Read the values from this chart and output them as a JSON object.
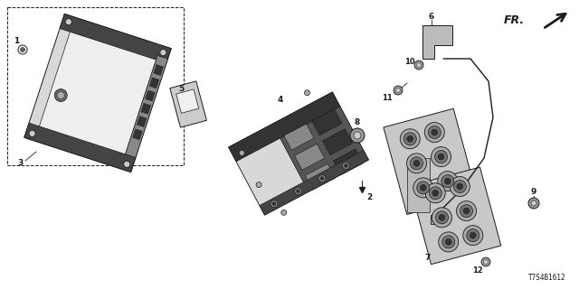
{
  "bg_color": "#ffffff",
  "diagram_code": "T7S4B1612",
  "fr_label": "FR.",
  "line_color": "#1a1a1a",
  "gray_fill": "#bbbbbb",
  "dark_fill": "#555555",
  "mid_fill": "#888888"
}
